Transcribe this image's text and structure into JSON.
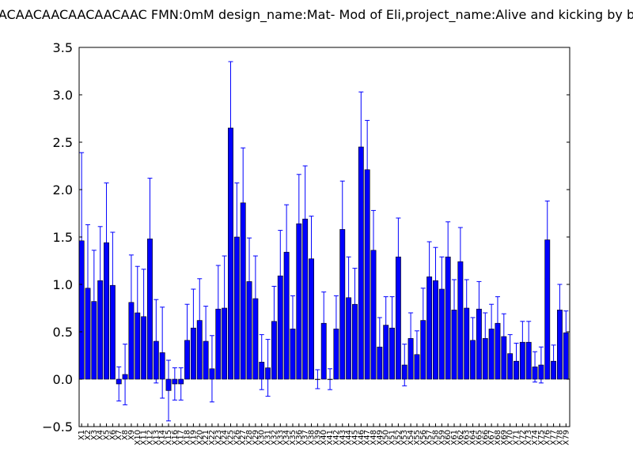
{
  "chart_data": {
    "type": "bar",
    "title": "ACAACAACAACAACAAC  FMN:0mM  design_name:Mat- Mod of Eli,project_name:Alive and kicking by b",
    "xlabel": "",
    "ylabel": "",
    "ylim": [
      -0.5,
      3.5
    ],
    "yticks": [
      "−0.5",
      "0.0",
      "0.5",
      "1.0",
      "1.5",
      "2.0",
      "2.5",
      "3.0",
      "3.5"
    ],
    "grid": false,
    "error_bars": true,
    "bar_color": "#0000ff",
    "errorbar_color": "#0000ff",
    "categories": [
      "X1",
      "X2",
      "X3",
      "X4",
      "X5",
      "X6",
      "X7",
      "X8",
      "X9",
      "X10",
      "X11",
      "X12",
      "X13",
      "X14",
      "X15",
      "X16",
      "X17",
      "X18",
      "X19",
      "X20",
      "X21",
      "X22",
      "X23",
      "X24",
      "X25",
      "X26",
      "X27",
      "X28",
      "X29",
      "X30",
      "X31",
      "X32",
      "X33",
      "X34",
      "X35",
      "X36",
      "X37",
      "X38",
      "X39",
      "X40",
      "X41",
      "X42",
      "X43",
      "X44",
      "X45",
      "X46",
      "X47",
      "X48",
      "X49",
      "X50",
      "X51",
      "X52",
      "X53",
      "X54",
      "X55",
      "X56",
      "X57",
      "X58",
      "X59",
      "X60",
      "X61",
      "X62",
      "X63",
      "X64",
      "X65",
      "X66",
      "X67",
      "X68",
      "X69",
      "X70",
      "X71",
      "X72",
      "X73",
      "X74",
      "X75",
      "X76",
      "X77",
      "X78",
      "X79"
    ],
    "values": [
      1.46,
      0.96,
      0.82,
      1.04,
      1.44,
      0.99,
      -0.05,
      0.05,
      0.81,
      0.7,
      0.66,
      1.48,
      0.4,
      0.28,
      -0.12,
      -0.05,
      -0.05,
      0.41,
      0.54,
      0.62,
      0.4,
      0.11,
      0.74,
      0.75,
      2.65,
      1.5,
      1.86,
      1.03,
      0.85,
      0.18,
      0.12,
      0.61,
      1.09,
      1.34,
      0.53,
      1.64,
      1.69,
      1.27,
      0.0,
      0.59,
      0.0,
      0.53,
      1.58,
      0.86,
      0.79,
      2.45,
      2.21,
      1.36,
      0.34,
      0.57,
      0.54,
      1.29,
      0.15,
      0.43,
      0.26,
      0.62,
      1.08,
      1.04,
      0.95,
      1.29,
      0.73,
      1.24,
      0.75,
      0.41,
      0.74,
      0.43,
      0.53,
      0.59,
      0.45,
      0.27,
      0.19,
      0.39,
      0.39,
      0.13,
      0.15,
      1.47,
      0.19,
      0.73,
      0.49
    ],
    "errors": [
      0.93,
      0.67,
      0.54,
      0.57,
      0.63,
      0.56,
      0.18,
      0.32,
      0.5,
      0.49,
      0.5,
      0.64,
      0.44,
      0.48,
      0.32,
      0.17,
      0.17,
      0.38,
      0.41,
      0.44,
      0.37,
      0.35,
      0.46,
      0.55,
      0.7,
      0.57,
      0.58,
      0.46,
      0.45,
      0.29,
      0.3,
      0.37,
      0.48,
      0.5,
      0.35,
      0.52,
      0.56,
      0.45,
      0.1,
      0.33,
      0.11,
      0.35,
      0.51,
      0.43,
      0.38,
      0.58,
      0.52,
      0.42,
      0.31,
      0.3,
      0.33,
      0.41,
      0.22,
      0.27,
      0.25,
      0.34,
      0.37,
      0.35,
      0.34,
      0.37,
      0.32,
      0.36,
      0.3,
      0.24,
      0.29,
      0.27,
      0.26,
      0.28,
      0.24,
      0.2,
      0.19,
      0.22,
      0.22,
      0.16,
      0.19,
      0.41,
      0.17,
      0.27,
      0.23
    ]
  }
}
